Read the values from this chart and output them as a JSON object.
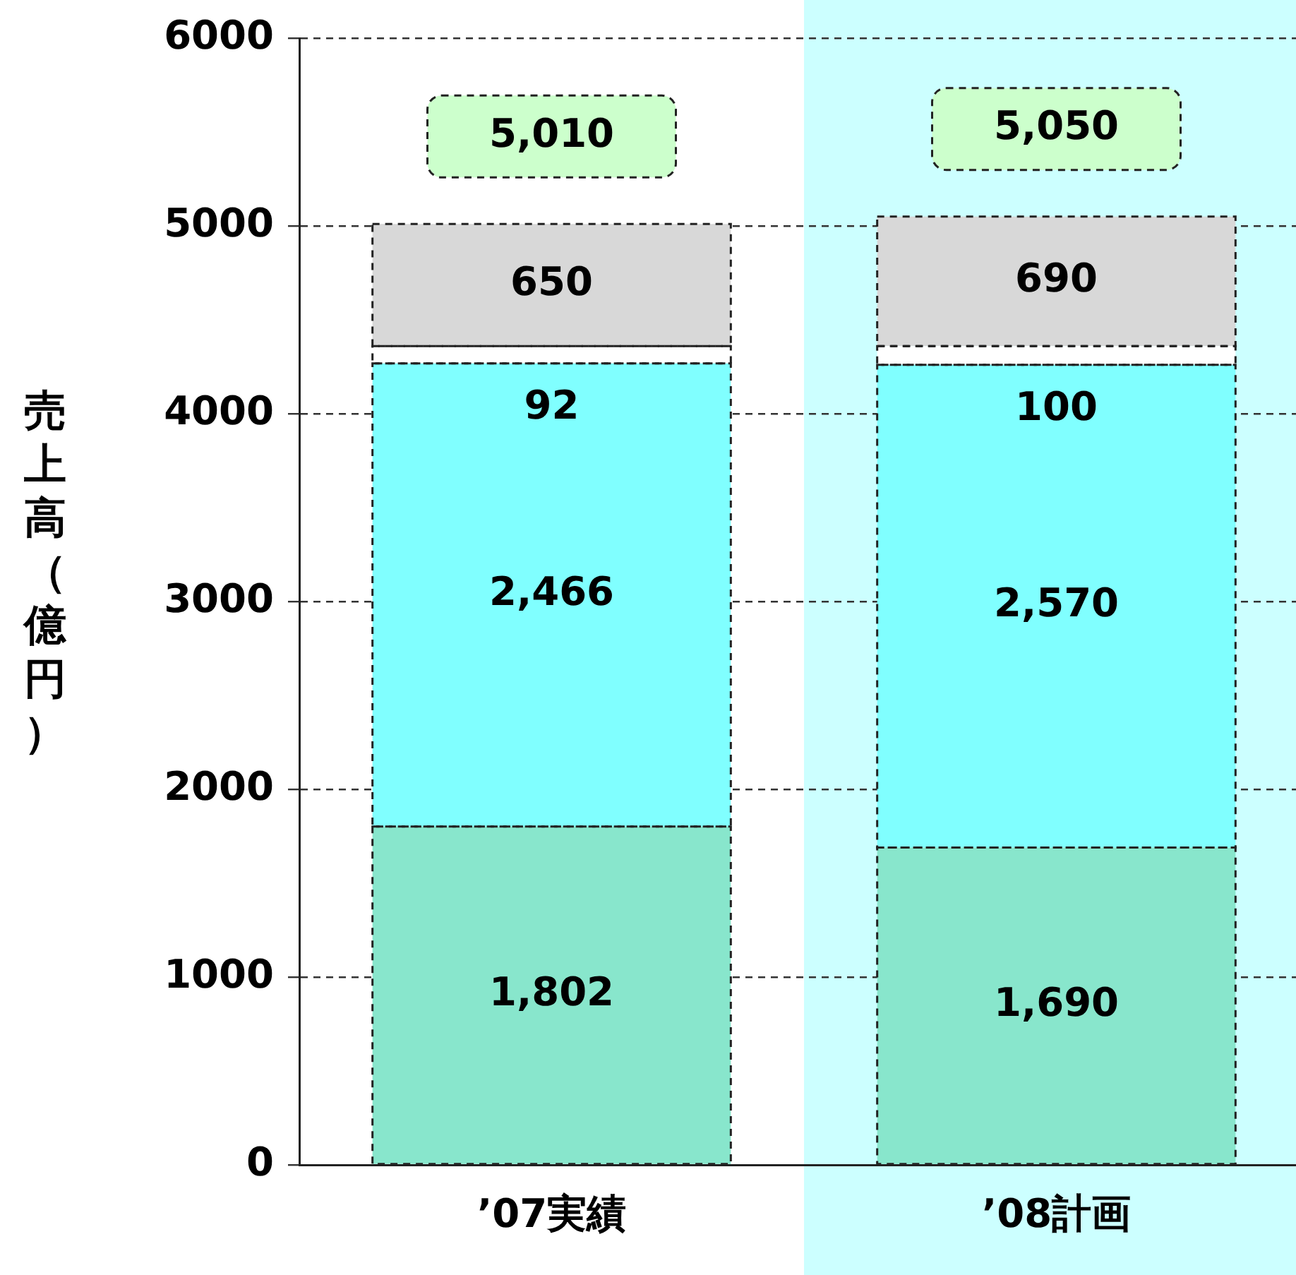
{
  "chart_data": {
    "type": "bar",
    "stacked": true,
    "ylabel": "売上高（億円）",
    "categories": [
      "’07実績",
      "’08計画"
    ],
    "ylim": [
      0,
      6000
    ],
    "yticks": [
      0,
      1000,
      2000,
      3000,
      4000,
      5000,
      6000
    ],
    "grid": "y",
    "legend": false,
    "totals": [
      "5,010",
      "5,050"
    ],
    "bands": [
      {
        "axis": "x",
        "from": "’08計画",
        "to": "’08計画",
        "color": "#ccffff"
      }
    ],
    "series": [
      {
        "color": "#88e6cc",
        "values": [
          1802,
          1690
        ],
        "value_labels": [
          "1,802",
          "1,690"
        ]
      },
      {
        "color": "#80ffff",
        "values": [
          2466,
          2570
        ],
        "value_labels": [
          "2,466",
          "2,570"
        ]
      },
      {
        "color": "#ffffff",
        "values": [
          92,
          100
        ],
        "value_labels": [
          "92",
          "100"
        ]
      },
      {
        "color": "#d8d8d8",
        "values": [
          650,
          690
        ],
        "value_labels": [
          "650",
          "690"
        ]
      }
    ]
  }
}
